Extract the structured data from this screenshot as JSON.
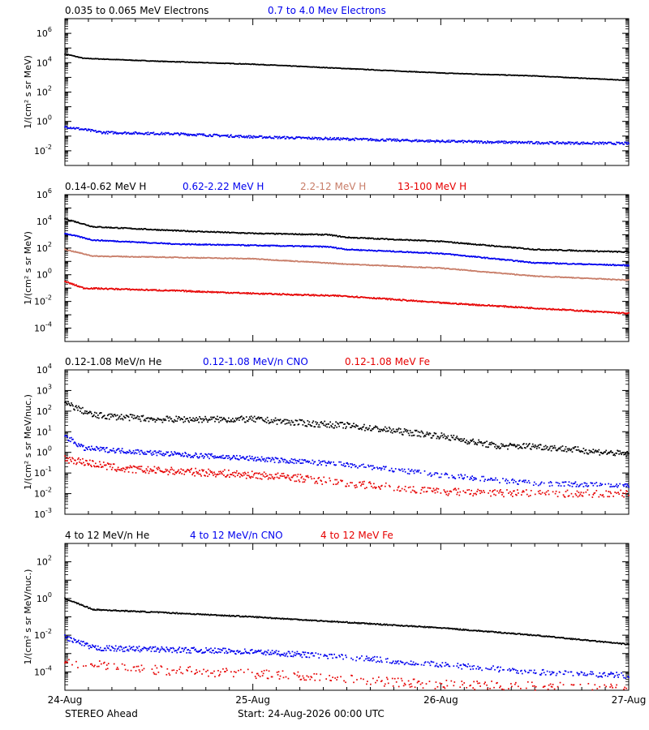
{
  "colors": {
    "black": "#000000",
    "blue": "#0000ee",
    "tan": "#c87d68",
    "red": "#e60000",
    "grid": "#000000"
  },
  "x_ticks": [
    "24-Aug",
    "25-Aug",
    "26-Aug",
    "27-Aug"
  ],
  "footer": {
    "left": "STEREO Ahead",
    "center": "Start: 24-Aug-2026 00:00 UTC"
  },
  "chart_data": [
    {
      "type": "scatter",
      "ylabel": "1/(cm² s sr MeV)",
      "yscale": "log",
      "ylim_exp": [
        -3,
        7
      ],
      "ytick_exps": [
        -2,
        0,
        2,
        4,
        6
      ],
      "xlim_days": [
        0,
        3
      ],
      "legend": [
        "0.035 to 0.065 MeV Electrons",
        "0.7 to 4.0 Mev Electrons"
      ],
      "series": [
        {
          "name": "0.035 to 0.065 MeV Electrons",
          "color": "black",
          "noise": 0.02,
          "sparse": 0,
          "points": [
            [
              0,
              4.6
            ],
            [
              0.1,
              4.3
            ],
            [
              0.5,
              4.1
            ],
            [
              1.0,
              3.9
            ],
            [
              1.5,
              3.6
            ],
            [
              2.0,
              3.3
            ],
            [
              2.5,
              3.1
            ],
            [
              3.0,
              2.8
            ]
          ]
        },
        {
          "name": "0.7 to 4.0 Mev Electrons",
          "color": "blue",
          "noise": 0.08,
          "sparse": 0,
          "points": [
            [
              0,
              -0.35
            ],
            [
              0.2,
              -0.75
            ],
            [
              0.6,
              -0.85
            ],
            [
              1.0,
              -1.05
            ],
            [
              1.5,
              -1.2
            ],
            [
              2.0,
              -1.35
            ],
            [
              2.5,
              -1.45
            ],
            [
              3.0,
              -1.5
            ]
          ]
        }
      ]
    },
    {
      "type": "scatter",
      "ylabel": "1/(cm² s sr MeV)",
      "yscale": "log",
      "ylim_exp": [
        -5,
        6
      ],
      "ytick_exps": [
        -4,
        -2,
        0,
        2,
        4,
        6
      ],
      "xlim_days": [
        0,
        3
      ],
      "legend": [
        "0.14-0.62 MeV H",
        "0.62-2.22 MeV H",
        "2.2-12 MeV H",
        "13-100 MeV H"
      ],
      "series": [
        {
          "name": "0.14-0.62 MeV H",
          "color": "black",
          "noise": 0.04,
          "sparse": 0,
          "points": [
            [
              0,
              4.2
            ],
            [
              0.15,
              3.6
            ],
            [
              0.6,
              3.3
            ],
            [
              1.0,
              3.1
            ],
            [
              1.4,
              3.0
            ],
            [
              1.5,
              2.8
            ],
            [
              2.0,
              2.5
            ],
            [
              2.5,
              1.9
            ],
            [
              3.0,
              1.7
            ]
          ]
        },
        {
          "name": "0.62-2.22 MeV H",
          "color": "blue",
          "noise": 0.04,
          "sparse": 0,
          "points": [
            [
              0,
              3.1
            ],
            [
              0.15,
              2.6
            ],
            [
              0.6,
              2.3
            ],
            [
              1.0,
              2.2
            ],
            [
              1.4,
              2.1
            ],
            [
              1.5,
              1.9
            ],
            [
              2.0,
              1.6
            ],
            [
              2.5,
              0.9
            ],
            [
              3.0,
              0.7
            ]
          ]
        },
        {
          "name": "2.2-12 MeV H",
          "color": "tan",
          "noise": 0.03,
          "sparse": 0,
          "points": [
            [
              0,
              1.9
            ],
            [
              0.15,
              1.4
            ],
            [
              0.6,
              1.3
            ],
            [
              1.0,
              1.2
            ],
            [
              1.5,
              0.8
            ],
            [
              2.0,
              0.5
            ],
            [
              2.5,
              -0.1
            ],
            [
              3.0,
              -0.4
            ]
          ]
        },
        {
          "name": "13-100 MeV H",
          "color": "red",
          "noise": 0.05,
          "sparse": 0,
          "points": [
            [
              0,
              -0.5
            ],
            [
              0.1,
              -1.0
            ],
            [
              0.6,
              -1.2
            ],
            [
              1.0,
              -1.4
            ],
            [
              1.5,
              -1.6
            ],
            [
              2.0,
              -2.1
            ],
            [
              2.5,
              -2.5
            ],
            [
              3.0,
              -2.9
            ]
          ]
        }
      ]
    },
    {
      "type": "scatter",
      "ylabel": "1/(cm² s sr MeV/nuc.)",
      "yscale": "log",
      "ylim_exp": [
        -3,
        4
      ],
      "ytick_exps": [
        -3,
        -2,
        -1,
        0,
        1,
        2,
        3,
        4
      ],
      "xlim_days": [
        0,
        3
      ],
      "legend": [
        "0.12-1.08 MeV/n He",
        "0.12-1.08 MeV/n CNO",
        "0.12-1.08 MeV Fe"
      ],
      "series": [
        {
          "name": "0.12-1.08 MeV/n He",
          "color": "black",
          "noise": 0.15,
          "sparse": 0,
          "points": [
            [
              0,
              2.4
            ],
            [
              0.15,
              1.8
            ],
            [
              0.5,
              1.6
            ],
            [
              1.0,
              1.6
            ],
            [
              1.3,
              1.4
            ],
            [
              1.5,
              1.3
            ],
            [
              2.0,
              0.8
            ],
            [
              2.3,
              0.3
            ],
            [
              2.5,
              0.3
            ],
            [
              3.0,
              -0.1
            ]
          ]
        },
        {
          "name": "0.12-1.08 MeV/n CNO",
          "color": "blue",
          "noise": 0.12,
          "sparse": 1,
          "points": [
            [
              0,
              0.8
            ],
            [
              0.1,
              0.2
            ],
            [
              0.6,
              -0.1
            ],
            [
              1.0,
              -0.3
            ],
            [
              1.5,
              -0.6
            ],
            [
              2.0,
              -1.1
            ],
            [
              2.5,
              -1.5
            ],
            [
              3.0,
              -1.6
            ]
          ]
        },
        {
          "name": "0.12-1.08 MeV Fe",
          "color": "red",
          "noise": 0.18,
          "sparse": 1,
          "points": [
            [
              0,
              -0.3
            ],
            [
              0.3,
              -0.8
            ],
            [
              0.8,
              -1.0
            ],
            [
              1.2,
              -1.2
            ],
            [
              1.5,
              -1.5
            ],
            [
              2.0,
              -1.9
            ],
            [
              2.5,
              -2.0
            ],
            [
              3.0,
              -2.0
            ]
          ]
        }
      ]
    },
    {
      "type": "scatter",
      "ylabel": "1/(cm² s sr MeV/nuc.)",
      "yscale": "log",
      "ylim_exp": [
        -5,
        3
      ],
      "ytick_exps": [
        -4,
        -2,
        0,
        2
      ],
      "xlim_days": [
        0,
        3
      ],
      "legend": [
        "4 to 12 MeV/n He",
        "4 to 12 MeV/n CNO",
        "4 to 12 MeV Fe"
      ],
      "series": [
        {
          "name": "4 to 12 MeV/n He",
          "color": "black",
          "noise": 0.03,
          "sparse": 0,
          "points": [
            [
              0,
              0.0
            ],
            [
              0.15,
              -0.6
            ],
            [
              0.6,
              -0.8
            ],
            [
              1.0,
              -1.0
            ],
            [
              1.5,
              -1.3
            ],
            [
              2.0,
              -1.6
            ],
            [
              2.5,
              -2.0
            ],
            [
              3.0,
              -2.5
            ]
          ]
        },
        {
          "name": "4 to 12 MeV/n CNO",
          "color": "blue",
          "noise": 0.15,
          "sparse": 1,
          "points": [
            [
              0,
              -2.1
            ],
            [
              0.15,
              -2.7
            ],
            [
              0.6,
              -2.8
            ],
            [
              1.0,
              -2.9
            ],
            [
              1.5,
              -3.2
            ],
            [
              2.0,
              -3.6
            ],
            [
              2.5,
              -4.0
            ],
            [
              3.0,
              -4.2
            ]
          ]
        },
        {
          "name": "4 to 12 MeV Fe",
          "color": "red",
          "noise": 0.25,
          "sparse": 2,
          "points": [
            [
              0,
              -3.5
            ],
            [
              0.5,
              -3.9
            ],
            [
              1.0,
              -4.1
            ],
            [
              1.5,
              -4.4
            ],
            [
              2.0,
              -4.7
            ],
            [
              3.0,
              -4.9
            ]
          ]
        }
      ]
    }
  ]
}
